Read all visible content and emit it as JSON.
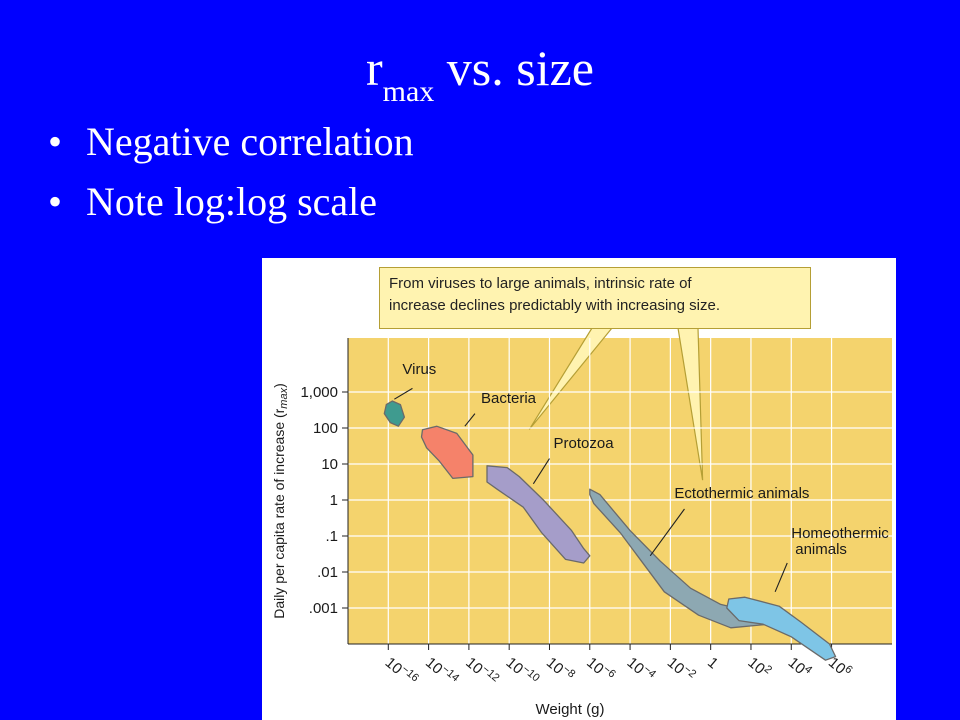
{
  "slide": {
    "title_main": "r",
    "title_sub": "max",
    "title_rest": " vs. size",
    "bullets": [
      "Negative correlation",
      "Note log:log scale"
    ]
  },
  "colors": {
    "background": "#0000ff",
    "plot_bg": "#f4d36d",
    "callout_bg": "#fff3b0",
    "virus": "#3f9b8f",
    "bacteria": "#f5826a",
    "protozoa": "#a59dc9",
    "ectothermic": "#8da8b2",
    "homeothermic": "#7ec5e6"
  },
  "chart_data": {
    "type": "scatter",
    "title": "",
    "callout": [
      "From viruses to large animals, intrinsic rate of",
      "increase declines predictably with increasing size."
    ],
    "xlabel": "Weight (g)",
    "ylabel": "Daily per capita rate of increase (r",
    "ylabel_sub": "max",
    "ylabel_end": ")",
    "x_scale": "log",
    "y_scale": "log",
    "x_ticks": [
      {
        "value": 1e-16,
        "base": "10",
        "exp": "−16"
      },
      {
        "value": 1e-14,
        "base": "10",
        "exp": "−14"
      },
      {
        "value": 1e-12,
        "base": "10",
        "exp": "−12"
      },
      {
        "value": 1e-10,
        "base": "10",
        "exp": "−10"
      },
      {
        "value": 1e-08,
        "base": "10",
        "exp": "−8"
      },
      {
        "value": 1e-06,
        "base": "10",
        "exp": "−6"
      },
      {
        "value": 0.0001,
        "base": "10",
        "exp": "−4"
      },
      {
        "value": 0.01,
        "base": "10",
        "exp": "−2"
      },
      {
        "value": 1,
        "base": "1",
        "exp": ""
      },
      {
        "value": 100.0,
        "base": "10",
        "exp": "2"
      },
      {
        "value": 10000.0,
        "base": "10",
        "exp": "4"
      },
      {
        "value": 1000000.0,
        "base": "10",
        "exp": "6"
      }
    ],
    "y_ticks": [
      {
        "value": 1000,
        "label": "1,000"
      },
      {
        "value": 100,
        "label": "100"
      },
      {
        "value": 10,
        "label": "10"
      },
      {
        "value": 1,
        "label": "1"
      },
      {
        "value": 0.1,
        "label": ".1"
      },
      {
        "value": 0.01,
        "label": ".01"
      },
      {
        "value": 0.001,
        "label": ".001"
      }
    ],
    "xlim_log10": [
      -18,
      9
    ],
    "ylim_log10": [
      -4,
      4.5
    ],
    "grid": true,
    "groups": [
      {
        "name": "Virus",
        "color": "#3f9b8f",
        "outline": [
          [
            -16.1,
            2.65
          ],
          [
            -15.8,
            2.75
          ],
          [
            -15.4,
            2.65
          ],
          [
            -15.2,
            2.3
          ],
          [
            -15.5,
            2.05
          ],
          [
            -15.9,
            2.15
          ],
          [
            -16.2,
            2.4
          ]
        ],
        "label_at": [
          -15.3,
          3.5
        ],
        "pointer": [
          [
            -14.8,
            3.1
          ],
          [
            -15.7,
            2.8
          ]
        ]
      },
      {
        "name": "Bacteria",
        "color": "#f5826a",
        "outline": [
          [
            -14.3,
            1.95
          ],
          [
            -13.6,
            2.05
          ],
          [
            -12.6,
            1.85
          ],
          [
            -11.8,
            1.25
          ],
          [
            -11.8,
            0.65
          ],
          [
            -12.8,
            0.6
          ],
          [
            -13.5,
            1.1
          ],
          [
            -14.1,
            1.45
          ],
          [
            -14.35,
            1.75
          ]
        ],
        "label_at": [
          -11.4,
          2.7
        ],
        "pointer": [
          [
            -11.7,
            2.4
          ],
          [
            -12.2,
            2.05
          ]
        ]
      },
      {
        "name": "Protozoa",
        "color": "#a59dc9",
        "outline": [
          [
            -11.1,
            0.95
          ],
          [
            -10.1,
            0.9
          ],
          [
            -9.5,
            0.65
          ],
          [
            -8.3,
            0.0
          ],
          [
            -6.9,
            -0.85
          ],
          [
            -6.3,
            -1.35
          ],
          [
            -6.0,
            -1.55
          ],
          [
            -6.3,
            -1.75
          ],
          [
            -7.2,
            -1.65
          ],
          [
            -8.4,
            -0.9
          ],
          [
            -9.3,
            -0.2
          ],
          [
            -10.6,
            0.3
          ],
          [
            -11.1,
            0.5
          ]
        ],
        "label_at": [
          -7.8,
          1.45
        ],
        "pointer": [
          [
            -8.0,
            1.15
          ],
          [
            -8.8,
            0.45
          ]
        ]
      },
      {
        "name": "Ectothermic animals",
        "color": "#8da8b2",
        "outline": [
          [
            -6.0,
            0.3
          ],
          [
            -5.5,
            0.15
          ],
          [
            -4.0,
            -0.85
          ],
          [
            -2.5,
            -1.7
          ],
          [
            -1.0,
            -2.45
          ],
          [
            0.5,
            -2.9
          ],
          [
            2.0,
            -3.1
          ],
          [
            3.0,
            -3.2
          ],
          [
            2.9,
            -3.45
          ],
          [
            1.0,
            -3.55
          ],
          [
            -0.6,
            -3.2
          ],
          [
            -2.3,
            -2.55
          ],
          [
            -3.3,
            -1.8
          ],
          [
            -4.5,
            -0.9
          ],
          [
            -5.8,
            -0.1
          ],
          [
            -6.0,
            0.15
          ]
        ],
        "label_at": [
          -1.8,
          0.05
        ],
        "pointer": [
          [
            -1.3,
            -0.25
          ],
          [
            -3.0,
            -1.55
          ]
        ]
      },
      {
        "name": "Homeothermic animals",
        "color": "#7ec5e6",
        "outline": [
          [
            0.9,
            -2.75
          ],
          [
            1.7,
            -2.7
          ],
          [
            3.4,
            -2.95
          ],
          [
            4.5,
            -3.4
          ],
          [
            5.9,
            -4.0
          ],
          [
            6.2,
            -4.35
          ],
          [
            5.7,
            -4.45
          ],
          [
            4.0,
            -3.8
          ],
          [
            2.6,
            -3.45
          ],
          [
            1.4,
            -3.35
          ],
          [
            0.8,
            -3.0
          ]
        ],
        "label_at": [
          4.0,
          -1.05
        ],
        "label_line2": [
          4.0,
          -1.5
        ],
        "pointer": [
          [
            3.8,
            -1.75
          ],
          [
            3.2,
            -2.55
          ]
        ]
      }
    ]
  }
}
